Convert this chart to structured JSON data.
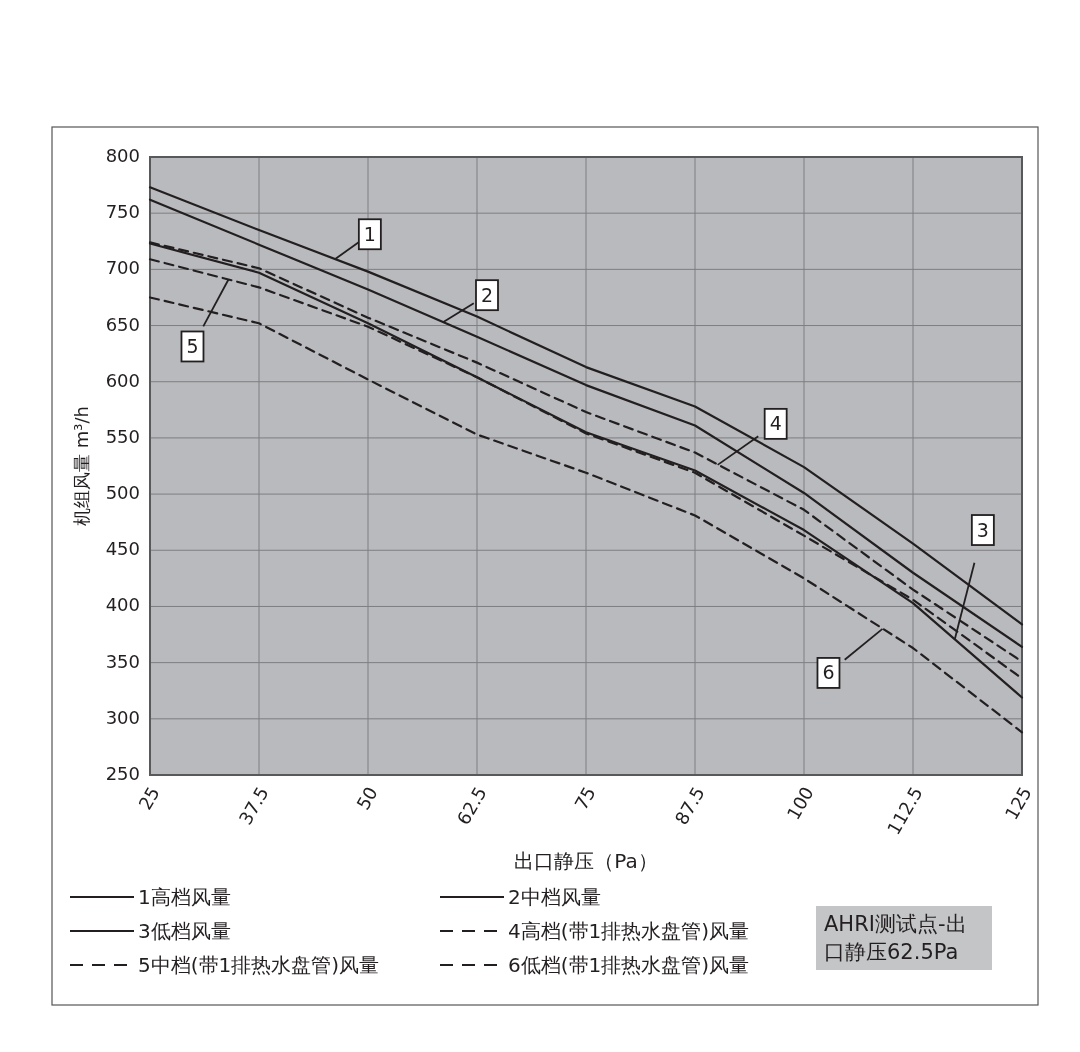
{
  "chart_data": {
    "type": "line",
    "xlabel": "出口静压（Pa）",
    "ylabel": "机组风量  m³/h",
    "x": [
      25,
      37.5,
      50,
      62.5,
      75,
      87.5,
      100,
      112.5,
      125
    ],
    "xlim": [
      25,
      125
    ],
    "xticks": [
      25,
      37.5,
      50,
      62.5,
      75,
      87.5,
      100,
      112.5,
      125
    ],
    "ylim": [
      250,
      800
    ],
    "yticks": [
      250,
      300,
      350,
      400,
      450,
      500,
      550,
      600,
      650,
      700,
      750,
      800
    ],
    "grid": true,
    "legend": "bottom",
    "series": [
      {
        "name": "1高档风量",
        "color": "#231f20",
        "line_style": "solid",
        "values": [
          773,
          735,
          698,
          658,
          613,
          578,
          524,
          456,
          384
        ]
      },
      {
        "name": "2中档风量",
        "color": "#231f20",
        "line_style": "solid",
        "values": [
          762,
          722,
          682,
          640,
          597,
          561,
          501,
          430,
          364
        ]
      },
      {
        "name": "3低档风量",
        "color": "#231f20",
        "line_style": "solid",
        "values": [
          723,
          697,
          652,
          604,
          555,
          521,
          468,
          403,
          319
        ]
      },
      {
        "name": "4高档(带1排热水盘管)风量",
        "color": "#231f20",
        "line_style": "dashed",
        "values": [
          724,
          701,
          657,
          617,
          573,
          537,
          486,
          415,
          351
        ]
      },
      {
        "name": "5中档(带1排热水盘管)风量",
        "color": "#231f20",
        "line_style": "dashed",
        "values": [
          709,
          684,
          649,
          604,
          554,
          519,
          463,
          406,
          336
        ]
      },
      {
        "name": "6低档(带1排热水盘管)风量",
        "color": "#231f20",
        "line_style": "dashed",
        "values": [
          675,
          652,
          602,
          553,
          519,
          481,
          425,
          363,
          288
        ]
      }
    ],
    "annotations": [
      {
        "text": "1",
        "x": 46.2,
        "y": 709
      },
      {
        "text": "2",
        "x": 58.6,
        "y": 653
      },
      {
        "text": "5",
        "x": 34,
        "y": 691
      },
      {
        "text": "4",
        "x": 90.1,
        "y": 526
      },
      {
        "text": "3",
        "x": 117.3,
        "y": 371
      },
      {
        "text": "6",
        "x": 109,
        "y": 380
      },
      "AHRI测试点-出口静压62.5Pa"
    ]
  }
}
